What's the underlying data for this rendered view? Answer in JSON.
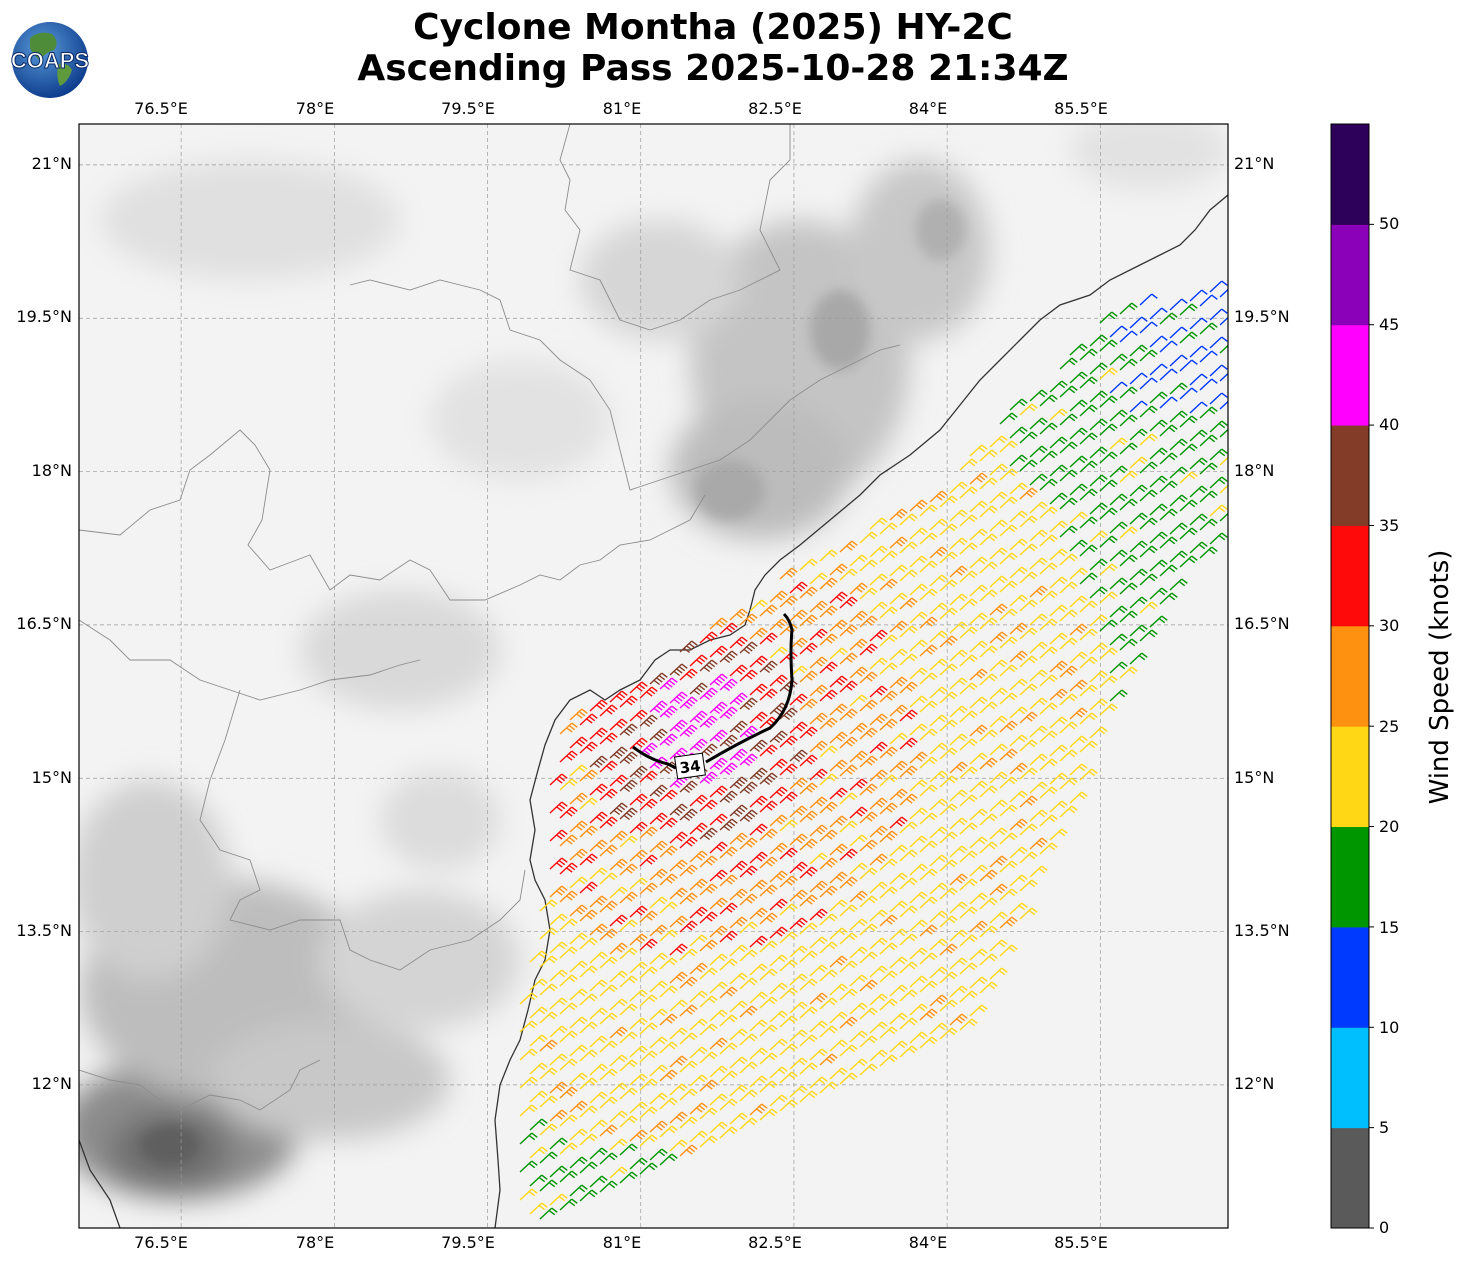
{
  "title": {
    "line1": "Cyclone Montha (2025) HY-2C",
    "line2": "Ascending Pass 2025-10-28 21:34Z"
  },
  "logo": {
    "text": "COAPS",
    "icon": "globe-logo"
  },
  "map": {
    "lon_range": [
      75.5,
      86.75
    ],
    "lat_range": [
      10.6,
      21.4
    ],
    "lon_ticks": [
      "76.5°E",
      "78°E",
      "79.5°E",
      "81°E",
      "82.5°E",
      "84°E",
      "85.5°E"
    ],
    "lat_ticks": [
      "21°N",
      "19.5°N",
      "18°N",
      "16.5°N",
      "15°N",
      "13.5°N",
      "12°N"
    ],
    "grid": true,
    "background": "grayscale infrared imagery",
    "contour_label": "34",
    "contour_color": "#000000"
  },
  "colorbar": {
    "label": "Wind Speed (knots)",
    "ticks": [
      "0",
      "5",
      "10",
      "15",
      "20",
      "25",
      "30",
      "35",
      "40",
      "45",
      "50"
    ],
    "colors": [
      "#5a5a5a",
      "#00bfff",
      "#0039ff",
      "#009600",
      "#ffd715",
      "#ff9111",
      "#ff0a0a",
      "#823c28",
      "#ff00ff",
      "#8b00b9",
      "#2d005a"
    ]
  }
}
